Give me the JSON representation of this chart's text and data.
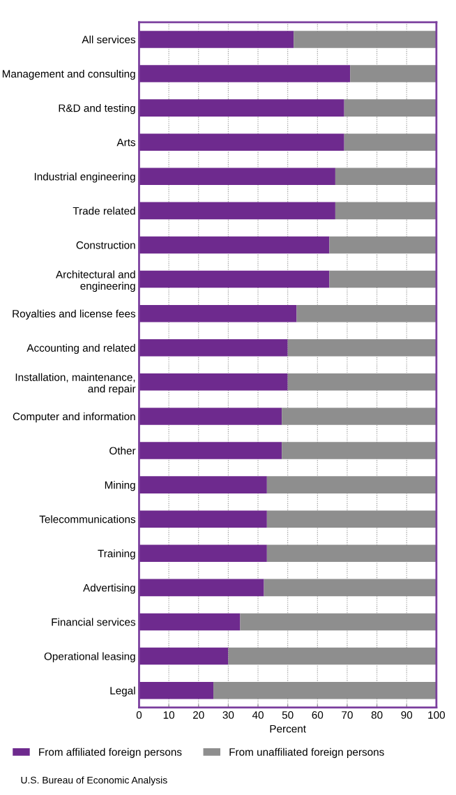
{
  "chart_data": {
    "type": "bar",
    "orientation": "horizontal",
    "stacked": true,
    "categories": [
      "All services",
      "Management and consulting",
      "R&D and testing",
      "Arts",
      "Industrial engineering",
      "Trade related",
      "Construction",
      "Architectural and engineering",
      "Royalties and license fees",
      "Accounting and related",
      "Installation, maintenance, and repair",
      "Computer and information",
      "Other",
      "Mining",
      "Telecommunications",
      "Training",
      "Advertising",
      "Financial services",
      "Operational leasing",
      "Legal"
    ],
    "series": [
      {
        "name": "From affiliated foreign persons",
        "color": "#6e2a8e",
        "values": [
          52,
          71,
          69,
          69,
          66,
          66,
          64,
          64,
          53,
          50,
          50,
          48,
          48,
          43,
          43,
          43,
          42,
          34,
          30,
          25
        ]
      },
      {
        "name": "From unaffiliated foreign persons",
        "color": "#8e8e8e",
        "values": [
          48,
          29,
          31,
          31,
          34,
          34,
          36,
          36,
          47,
          50,
          50,
          52,
          52,
          57,
          57,
          57,
          58,
          66,
          70,
          75
        ]
      }
    ],
    "xlim": [
      0,
      100
    ],
    "xticks": [
      0,
      10,
      20,
      30,
      40,
      50,
      60,
      70,
      80,
      90,
      100
    ],
    "xlabel": "Percent",
    "grid": "x",
    "legend": "bottom",
    "annotations": [
      "U.S. Bureau of Economic Analysis"
    ]
  }
}
